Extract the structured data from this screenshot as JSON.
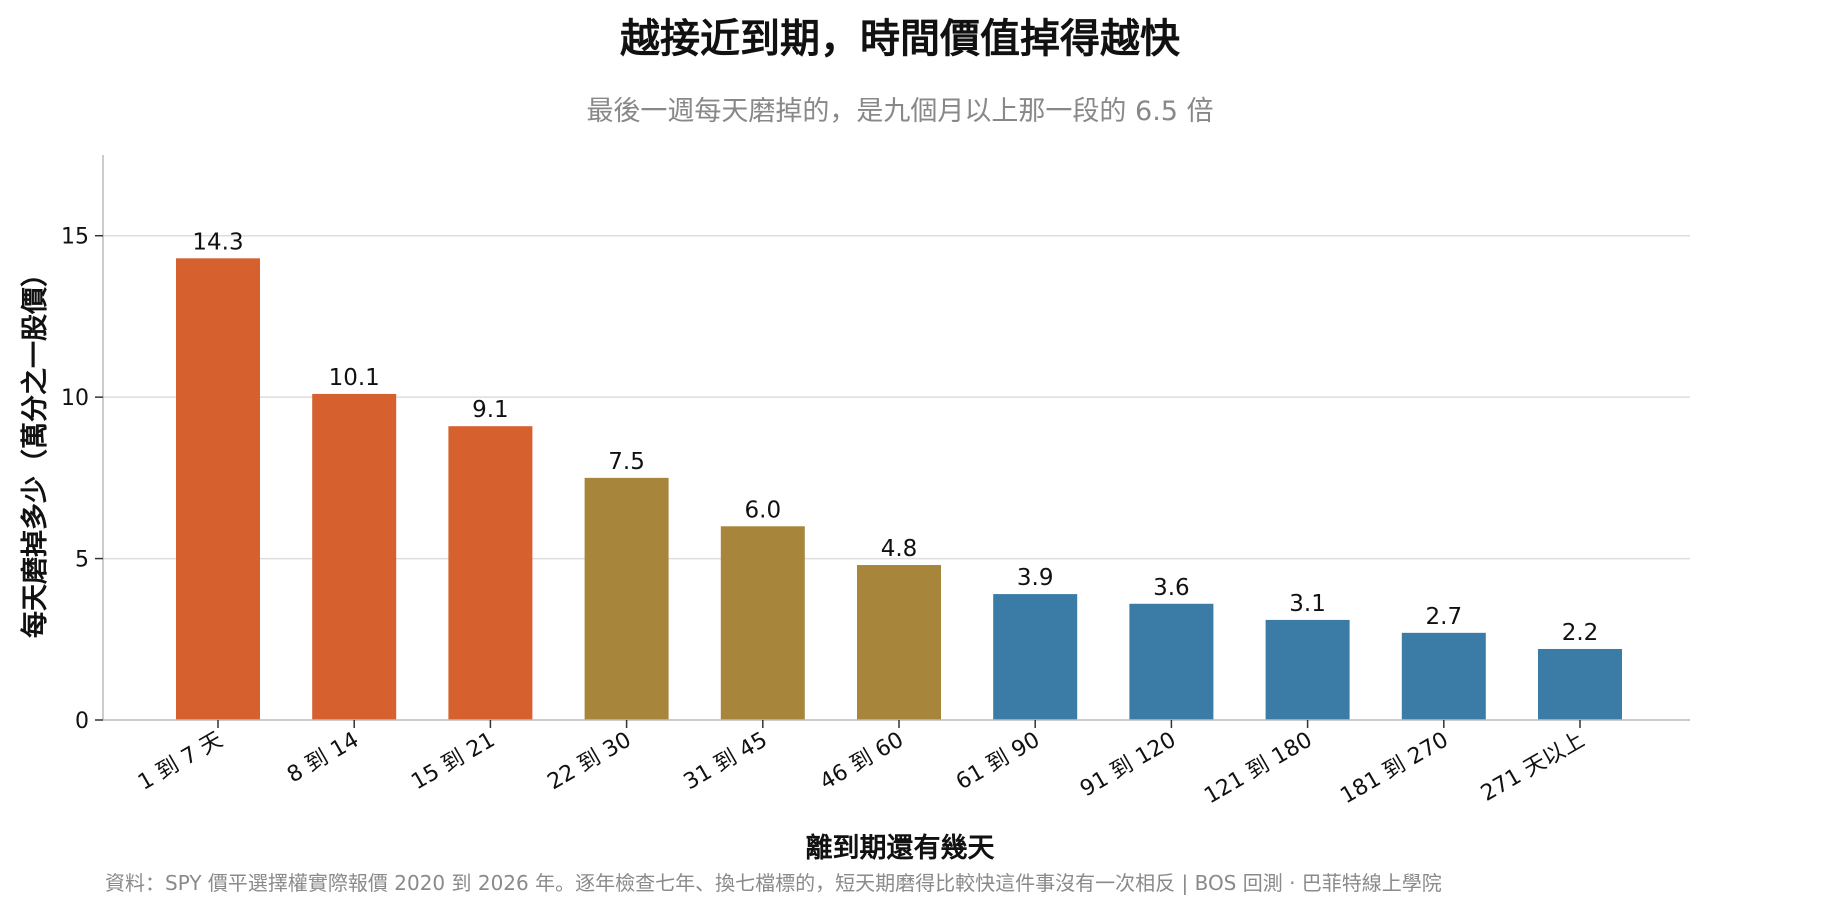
{
  "chart_data": {
    "type": "bar",
    "title": "越接近到期，時間價值掉得越快",
    "subtitle": "最後一週每天磨掉的，是九個月以上那一段的 6.5 倍",
    "xlabel": "離到期還有幾天",
    "ylabel": "每天磨掉多少（萬分之一股價）",
    "categories": [
      "1 到 7 天",
      "8 到 14",
      "15 到 21",
      "22 到 30",
      "31 到 45",
      "46 到 60",
      "61 到 90",
      "91 到 120",
      "121 到 180",
      "181 到 270",
      "271 天以上"
    ],
    "values": [
      14.3,
      10.1,
      9.1,
      7.5,
      6.0,
      4.8,
      3.9,
      3.6,
      3.1,
      2.7,
      2.2
    ],
    "value_labels": [
      "14.3",
      "10.1",
      "9.1",
      "7.5",
      "6.0",
      "4.8",
      "3.9",
      "3.6",
      "3.1",
      "2.7",
      "2.2"
    ],
    "bar_colors": [
      "#d6602e",
      "#d6602e",
      "#d6602e",
      "#a7863c",
      "#a7863c",
      "#a7863c",
      "#3b7ca6",
      "#3b7ca6",
      "#3b7ca6",
      "#3b7ca6",
      "#3b7ca6"
    ],
    "ylim": [
      0,
      17.5
    ],
    "yticks": [
      0,
      5,
      10,
      15
    ],
    "ytick_labels": [
      "0",
      "5",
      "10",
      "15"
    ],
    "grid": "horizontal",
    "source": "資料：SPY 價平選擇權實際報價 2020 到 2026 年。逐年檢查七年、換七檔標的，短天期磨得比較快這件事沒有一次相反 | BOS 回測 ·  巴菲特線上學院"
  }
}
